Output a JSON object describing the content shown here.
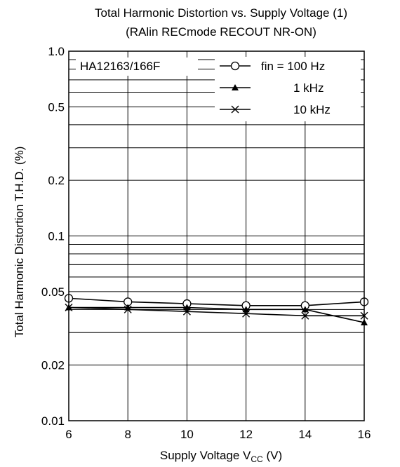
{
  "chart_data": {
    "type": "line",
    "title": "Total Harmonic Distortion vs. Supply Voltage  (1)",
    "subtitle": "(RAlin RECmode RECOUT NR-ON)",
    "xlabel": "Supply Voltage V",
    "xlabel_sub": "CC",
    "xlabel_unit": " (V)",
    "ylabel": "Total Harmonic Distortion T.H.D.   (%)",
    "annotation": "HA12163/166F",
    "x": [
      6,
      8,
      10,
      12,
      14,
      16
    ],
    "xlim": [
      6,
      16
    ],
    "xticks": [
      "6",
      "8",
      "10",
      "12",
      "14",
      "16"
    ],
    "yscale": "log",
    "ylim": [
      0.01,
      1.0
    ],
    "yticks": [
      {
        "value": 1.0,
        "label": "1.0"
      },
      {
        "value": 0.5,
        "label": "0.5"
      },
      {
        "value": 0.2,
        "label": "0.2"
      },
      {
        "value": 0.1,
        "label": "0.1"
      },
      {
        "value": 0.05,
        "label": "0.05"
      },
      {
        "value": 0.02,
        "label": "0.02"
      },
      {
        "value": 0.01,
        "label": "0.01"
      }
    ],
    "grid_lines": [
      0.02,
      0.03,
      0.04,
      0.05,
      0.06,
      0.07,
      0.08,
      0.09,
      0.1,
      0.2,
      0.3,
      0.4,
      0.5,
      0.6,
      0.7,
      0.8,
      0.9
    ],
    "vgrid": [
      8,
      10,
      12,
      14
    ],
    "legend_position": "top-right",
    "series": [
      {
        "name": "fin = 100 Hz",
        "marker": "circle",
        "values": [
          0.046,
          0.044,
          0.043,
          0.042,
          0.042,
          0.044
        ]
      },
      {
        "name": "1 kHz",
        "marker": "triangle",
        "values": [
          0.041,
          0.041,
          0.041,
          0.04,
          0.04,
          0.034
        ]
      },
      {
        "name": "10 kHz",
        "marker": "cross",
        "values": [
          0.041,
          0.04,
          0.039,
          0.038,
          0.037,
          0.037
        ]
      }
    ],
    "colors": {
      "ink": "#000000",
      "background": "#ffffff"
    }
  }
}
